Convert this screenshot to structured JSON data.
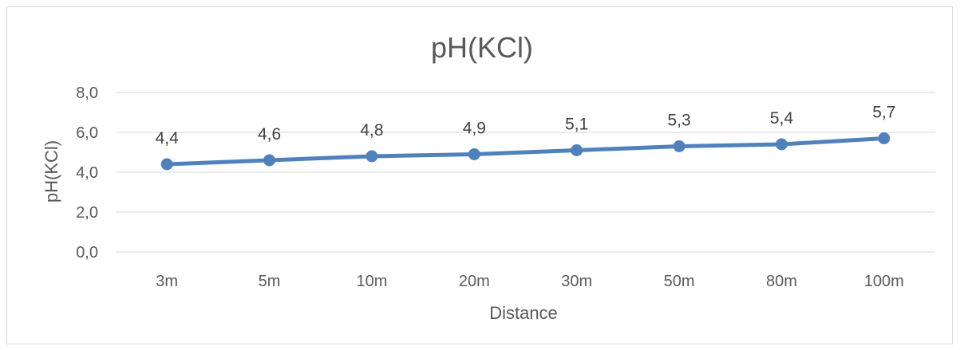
{
  "chart_data": {
    "type": "line",
    "title": "pH(KCl)",
    "xlabel": "Distance",
    "ylabel": "pH(KCl)",
    "categories": [
      "3m",
      "5m",
      "10m",
      "20m",
      "30m",
      "50m",
      "80m",
      "100m"
    ],
    "series": [
      {
        "values": [
          4.4,
          4.6,
          4.8,
          4.9,
          5.1,
          5.3,
          5.4,
          5.7
        ],
        "data_labels": [
          "4,4",
          "4,6",
          "4,8",
          "4,9",
          "5,1",
          "5,3",
          "5,4",
          "5,7"
        ],
        "color": "#4f81bd"
      }
    ],
    "yticks": [
      {
        "value": 0,
        "label": "0,0"
      },
      {
        "value": 2,
        "label": "2,0"
      },
      {
        "value": 4,
        "label": "4,0"
      },
      {
        "value": 6,
        "label": "6,0"
      },
      {
        "value": 8,
        "label": "8,0"
      }
    ],
    "ylim": [
      0,
      8
    ],
    "grid": true,
    "legend": "none"
  }
}
